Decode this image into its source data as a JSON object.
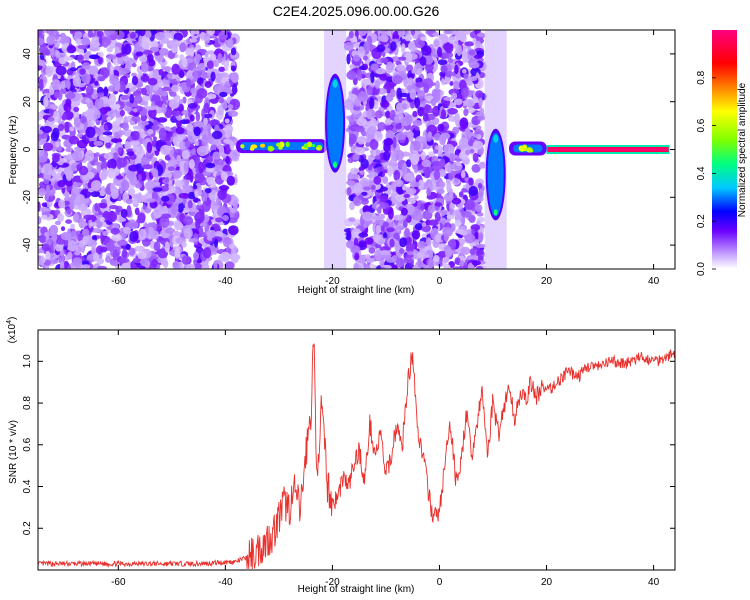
{
  "title": "C2E4.2025.096.00.00.G26",
  "chart_data": [
    {
      "type": "heatmap",
      "xlabel": "Height of straight line (km)",
      "ylabel": "Frequency (Hz)",
      "xlim": [
        -75,
        44
      ],
      "ylim": [
        -50,
        50
      ],
      "xticks": [
        -60,
        -40,
        -20,
        0,
        20,
        40
      ],
      "yticks": [
        -40,
        -20,
        0,
        20,
        40
      ],
      "colorbar": {
        "label": "Normalized spectral amplitude",
        "range": [
          0,
          1
        ],
        "ticks": [
          "0.0",
          "0.2",
          "0.4",
          "0.6",
          "0.8"
        ],
        "colors": [
          "#ffffff",
          "#c8a6ff",
          "#6a00ff",
          "#0000ff",
          "#00c8ff",
          "#00ff80",
          "#80ff00",
          "#ffff00",
          "#ff8000",
          "#ff0000",
          "#ff0080"
        ]
      },
      "regions": [
        {
          "name": "noise",
          "x": [
            -75,
            -38
          ],
          "level": 0.2
        },
        {
          "name": "signal",
          "x": [
            -38,
            -21
          ],
          "freq": 1,
          "level": 0.45
        },
        {
          "name": "transition",
          "x": [
            -21,
            -18
          ],
          "freq_range": [
            -8,
            30
          ],
          "level": 0.4
        },
        {
          "name": "noise",
          "x": [
            -17,
            8
          ],
          "level": 0.2
        },
        {
          "name": "transition",
          "x": [
            9,
            12
          ],
          "freq_range": [
            -28,
            7
          ],
          "level": 0.4
        },
        {
          "name": "signal",
          "x": [
            13,
            20
          ],
          "freq": 0,
          "level": 0.6
        },
        {
          "name": "strong-signal",
          "x": [
            20,
            43
          ],
          "freq": 0,
          "level": 0.95
        }
      ]
    },
    {
      "type": "line",
      "xlabel": "Height of straight line (km)",
      "ylabel": "SNR (10 * v/v)",
      "y_multiplier": "(x10^4)",
      "xlim": [
        -75,
        44
      ],
      "ylim": [
        0,
        1.15
      ],
      "xticks": [
        -60,
        -40,
        -20,
        0,
        20,
        40
      ],
      "yticks": [
        "0.2",
        "0.4",
        "0.6",
        "0.8",
        "1.0"
      ],
      "series": [
        {
          "color": "#e8302c",
          "x": [
            -75,
            -60,
            -45,
            -38,
            -35,
            -33,
            -31,
            -30,
            -29,
            -28,
            -27,
            -26,
            -25,
            -24,
            -23.5,
            -23,
            -22,
            -21,
            -20,
            -19,
            -18,
            -17,
            -16,
            -15,
            -14,
            -13,
            -12,
            -11,
            -10,
            -9,
            -8,
            -7,
            -6,
            -5,
            -4,
            -3,
            -2,
            -1,
            0,
            1,
            2,
            3,
            4,
            5,
            6,
            7,
            8,
            9,
            10,
            11,
            12,
            13,
            14,
            15,
            16,
            17,
            18,
            19,
            20,
            22,
            24,
            26,
            28,
            30,
            32,
            34,
            36,
            38,
            40,
            42,
            44
          ],
          "y": [
            0.03,
            0.03,
            0.03,
            0.04,
            0.07,
            0.12,
            0.18,
            0.25,
            0.32,
            0.3,
            0.38,
            0.28,
            0.55,
            0.75,
            1.15,
            0.45,
            0.78,
            0.42,
            0.32,
            0.35,
            0.45,
            0.4,
            0.5,
            0.58,
            0.42,
            0.7,
            0.55,
            0.65,
            0.45,
            0.55,
            0.7,
            0.58,
            0.88,
            1.05,
            0.65,
            0.55,
            0.35,
            0.25,
            0.28,
            0.5,
            0.7,
            0.45,
            0.5,
            0.75,
            0.55,
            0.7,
            0.85,
            0.55,
            0.82,
            0.65,
            0.78,
            0.88,
            0.72,
            0.85,
            0.8,
            0.9,
            0.82,
            0.88,
            0.85,
            0.9,
            0.95,
            0.93,
            0.98,
            0.97,
            1.0,
            0.99,
            1.0,
            1.02,
            1.0,
            1.02,
            1.04
          ]
        }
      ]
    }
  ]
}
